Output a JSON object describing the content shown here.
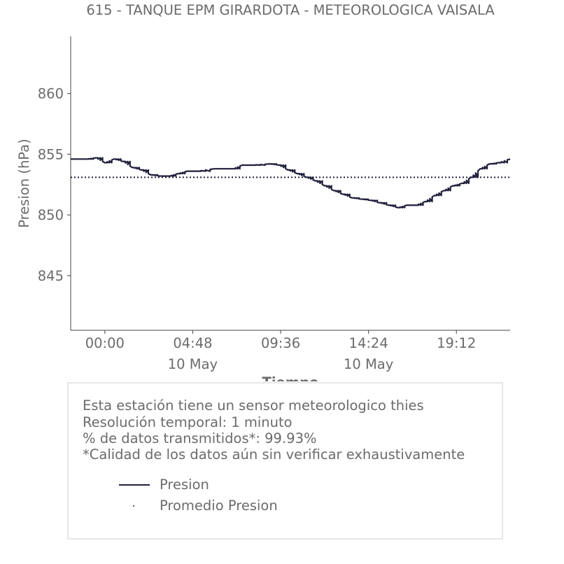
{
  "chart_data": {
    "type": "line",
    "title": "615 - TANQUE EPM GIRARDOTA - METEOROLOGICA VAISALA",
    "xlabel": "Tiempo",
    "ylabel": "Presion (hPa)",
    "xlim": [
      "09 May 22:08",
      "10 May 22:08"
    ],
    "ylim": [
      840.5,
      864.7
    ],
    "x_ticks": [
      {
        "value": "10 May 00:00",
        "label": "00:00",
        "sublabel": ""
      },
      {
        "value": "10 May 04:48",
        "label": "04:48",
        "sublabel": "10 May"
      },
      {
        "value": "10 May 09:36",
        "label": "09:36",
        "sublabel": ""
      },
      {
        "value": "10 May 14:24",
        "label": "14:24",
        "sublabel": "10 May"
      },
      {
        "value": "10 May 19:12",
        "label": "19:12",
        "sublabel": ""
      }
    ],
    "y_ticks": [
      845,
      850,
      855,
      860
    ],
    "grid": false,
    "series": [
      {
        "name": "Presion",
        "style": "solid",
        "color": "#1f1f3d",
        "x": [
          "09 May 22:08",
          "09 May 23:00",
          "09 May 23:30",
          "10 May 00:00",
          "10 May 00:30",
          "10 May 01:00",
          "10 May 01:30",
          "10 May 02:00",
          "10 May 02:30",
          "10 May 03:00",
          "10 May 03:30",
          "10 May 04:00",
          "10 May 04:30",
          "10 May 05:00",
          "10 May 06:00",
          "10 May 07:00",
          "10 May 07:30",
          "10 May 08:00",
          "10 May 09:00",
          "10 May 09:30",
          "10 May 10:00",
          "10 May 10:30",
          "10 May 11:00",
          "10 May 11:30",
          "10 May 12:00",
          "10 May 12:30",
          "10 May 13:00",
          "10 May 13:30",
          "10 May 14:00",
          "10 May 14:30",
          "10 May 15:00",
          "10 May 15:30",
          "10 May 16:00",
          "10 May 16:30",
          "10 May 17:00",
          "10 May 17:30",
          "10 May 18:00",
          "10 May 18:30",
          "10 May 19:00",
          "10 May 19:30",
          "10 May 20:00",
          "10 May 20:30",
          "10 May 21:00",
          "10 May 21:30",
          "10 May 22:08"
        ],
        "y": [
          854.6,
          854.6,
          854.7,
          854.3,
          854.6,
          854.4,
          853.9,
          853.7,
          853.3,
          853.2,
          853.2,
          853.4,
          853.6,
          853.6,
          853.8,
          853.8,
          854.1,
          854.1,
          854.2,
          854.1,
          853.7,
          853.4,
          853.1,
          852.8,
          852.4,
          852.0,
          851.7,
          851.4,
          851.3,
          851.2,
          851.0,
          850.8,
          850.6,
          850.8,
          850.8,
          851.1,
          851.6,
          852.0,
          852.4,
          852.6,
          853.1,
          853.8,
          854.2,
          854.3,
          854.6
        ]
      },
      {
        "name": "Promedio Presion",
        "style": "dotted",
        "color": "#1f1f3d",
        "x": [
          "09 May 22:08",
          "10 May 22:08"
        ],
        "y": [
          853.1,
          853.1
        ]
      }
    ],
    "legend": "bottom",
    "notes": [
      "Esta estación tiene un sensor meteorologico thies",
      "Resolución temporal: 1 minuto",
      "% de datos transmitidos*: 99.93%",
      "*Calidad de los datos aún sin verificar exhaustivamente"
    ]
  },
  "colors": {
    "text": "#6b6b6b",
    "axis": "#444444",
    "series": "#1f1f3d",
    "box_border": "#e6e6e6"
  }
}
